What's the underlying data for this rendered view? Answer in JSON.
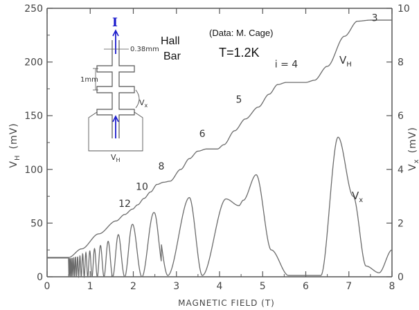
{
  "chart_data": {
    "type": "line",
    "xlabel": "MAGNETIC FIELD (T)",
    "ylabel_left": {
      "main": "V",
      "sub": "H",
      "unit": "(mV)"
    },
    "ylabel_right": {
      "main": "V",
      "sub": "x",
      "unit": "(mV)"
    },
    "xlim": [
      0,
      8
    ],
    "ylim_left": [
      0,
      250
    ],
    "ylim_right": [
      0,
      10
    ],
    "x_ticks": [
      "0",
      "1",
      "2",
      "3",
      "4",
      "5",
      "6",
      "7",
      "8"
    ],
    "y_ticks_left": [
      "0",
      "50",
      "100",
      "150",
      "200",
      "250"
    ],
    "y_ticks_right": [
      "0",
      "2",
      "4",
      "6",
      "8",
      "10"
    ],
    "series": [
      {
        "name": "V_H",
        "label_main": "V",
        "label_sub": "H",
        "axis": "left",
        "x": [
          0,
          0.5,
          0.8,
          1.2,
          1.6,
          1.8,
          1.98,
          2.1,
          2.25,
          2.4,
          2.55,
          2.7,
          2.85,
          3.1,
          3.3,
          3.5,
          3.7,
          3.95,
          4.1,
          4.35,
          4.6,
          4.9,
          5.15,
          5.35,
          5.55,
          6.0,
          6.2,
          6.5,
          6.9,
          7.2,
          7.5,
          8.0
        ],
        "y": [
          18,
          18,
          26,
          40,
          52,
          58,
          63,
          67,
          73,
          79,
          86,
          88,
          89,
          100,
          110,
          117,
          119,
          119,
          123,
          136,
          147,
          158,
          170,
          179,
          181,
          181,
          183,
          196,
          224,
          238,
          239,
          239
        ]
      },
      {
        "name": "V_x",
        "label_main": "V",
        "label_sub": "x",
        "axis": "right",
        "x": [
          0,
          0.5,
          0.7,
          0.9,
          1.1,
          1.3,
          1.5,
          1.7,
          1.95,
          2.2,
          2.5,
          2.8,
          3.3,
          3.6,
          4.15,
          4.45,
          4.55,
          4.85,
          5.2,
          5.6,
          6.35,
          6.75,
          7.1,
          7.4,
          7.7,
          8.0
        ],
        "y": [
          0.7,
          0.7,
          0.75,
          0.9,
          1.05,
          1.2,
          1.4,
          1.6,
          1.95,
          2.1,
          2.4,
          0.05,
          2.95,
          0.05,
          2.9,
          2.65,
          2.85,
          3.8,
          1.0,
          0.05,
          0.05,
          5.2,
          3.0,
          0.4,
          0.15,
          1.0
        ]
      }
    ],
    "plateau_labels": [
      {
        "text": "3",
        "x": 7.6,
        "y": 238
      },
      {
        "text": "i = 4",
        "x": 5.55,
        "y": 195
      },
      {
        "text": "5",
        "x": 4.45,
        "y": 162
      },
      {
        "text": "6",
        "x": 3.6,
        "y": 130
      },
      {
        "text": "8",
        "x": 2.65,
        "y": 100
      },
      {
        "text": "10",
        "x": 2.2,
        "y": 81
      },
      {
        "text": "12",
        "x": 1.8,
        "y": 65
      }
    ],
    "grid": false
  },
  "annotations": {
    "data_source": "(Data: M. Cage)",
    "temperature": "T=1.2K",
    "hall_bar_line1": "Hall",
    "hall_bar_line2": "Bar"
  },
  "inset": {
    "current_label": "I",
    "width_label": "0.38mm",
    "length_label": "1mm",
    "vx_label": {
      "main": "V",
      "sub": "x"
    },
    "vh_label": {
      "main": "V",
      "sub": "H"
    }
  },
  "colors": {
    "curve": "#6b6b6b",
    "axis": "#555555",
    "current_arrow": "#1a1acc"
  }
}
